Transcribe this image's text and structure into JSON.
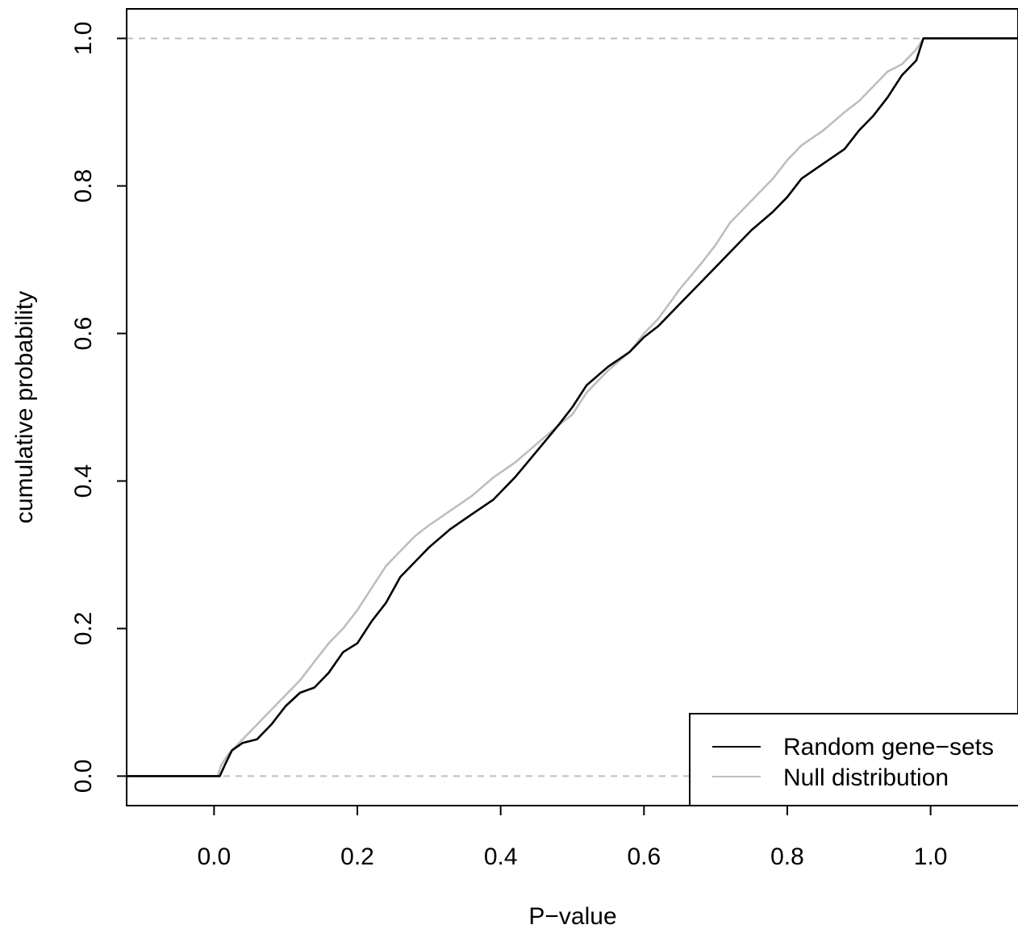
{
  "chart_data": {
    "type": "line",
    "title": "",
    "xlabel": "P−value",
    "ylabel": "cumulative probability",
    "xlim": [
      -0.122,
      1.122
    ],
    "ylim": [
      -0.04,
      1.04
    ],
    "xticks": [
      "0.0",
      "0.2",
      "0.4",
      "0.6",
      "0.8",
      "1.0"
    ],
    "yticks": [
      "0.0",
      "0.2",
      "0.4",
      "0.6",
      "0.8",
      "1.0"
    ],
    "grid": false,
    "legend_position": "bottom-right",
    "reference_lines": [
      0,
      1
    ],
    "series": [
      {
        "name": "Random gene−sets",
        "color": "#000000",
        "x": [
          -0.122,
          0.008,
          0.015,
          0.025,
          0.04,
          0.06,
          0.08,
          0.1,
          0.12,
          0.14,
          0.16,
          0.18,
          0.2,
          0.22,
          0.24,
          0.26,
          0.28,
          0.3,
          0.33,
          0.36,
          0.39,
          0.42,
          0.45,
          0.48,
          0.5,
          0.52,
          0.55,
          0.58,
          0.6,
          0.62,
          0.65,
          0.68,
          0.7,
          0.72,
          0.75,
          0.78,
          0.8,
          0.82,
          0.85,
          0.88,
          0.9,
          0.92,
          0.94,
          0.96,
          0.98,
          0.99,
          1.122
        ],
        "y": [
          0.0,
          0.0,
          0.015,
          0.035,
          0.045,
          0.05,
          0.07,
          0.095,
          0.113,
          0.12,
          0.14,
          0.168,
          0.18,
          0.21,
          0.235,
          0.27,
          0.29,
          0.31,
          0.335,
          0.355,
          0.375,
          0.405,
          0.44,
          0.475,
          0.5,
          0.53,
          0.555,
          0.575,
          0.595,
          0.61,
          0.64,
          0.67,
          0.69,
          0.71,
          0.74,
          0.765,
          0.785,
          0.81,
          0.83,
          0.85,
          0.875,
          0.895,
          0.92,
          0.95,
          0.97,
          1.0,
          1.0
        ]
      },
      {
        "name": "Null distribution",
        "color": "#bebebe",
        "x": [
          -0.122,
          0.005,
          0.01,
          0.02,
          0.04,
          0.06,
          0.08,
          0.1,
          0.12,
          0.14,
          0.16,
          0.18,
          0.2,
          0.22,
          0.24,
          0.26,
          0.28,
          0.3,
          0.33,
          0.36,
          0.39,
          0.42,
          0.45,
          0.48,
          0.5,
          0.52,
          0.55,
          0.58,
          0.6,
          0.62,
          0.65,
          0.68,
          0.7,
          0.72,
          0.75,
          0.78,
          0.8,
          0.82,
          0.85,
          0.88,
          0.9,
          0.92,
          0.94,
          0.96,
          0.98,
          0.99,
          1.122
        ],
        "y": [
          0.0,
          0.0,
          0.015,
          0.03,
          0.05,
          0.07,
          0.09,
          0.11,
          0.13,
          0.155,
          0.18,
          0.2,
          0.225,
          0.255,
          0.285,
          0.305,
          0.325,
          0.34,
          0.36,
          0.38,
          0.405,
          0.425,
          0.45,
          0.475,
          0.49,
          0.52,
          0.55,
          0.575,
          0.6,
          0.62,
          0.66,
          0.695,
          0.72,
          0.75,
          0.78,
          0.81,
          0.835,
          0.855,
          0.875,
          0.9,
          0.915,
          0.935,
          0.955,
          0.965,
          0.985,
          1.0,
          1.0
        ]
      }
    ]
  }
}
